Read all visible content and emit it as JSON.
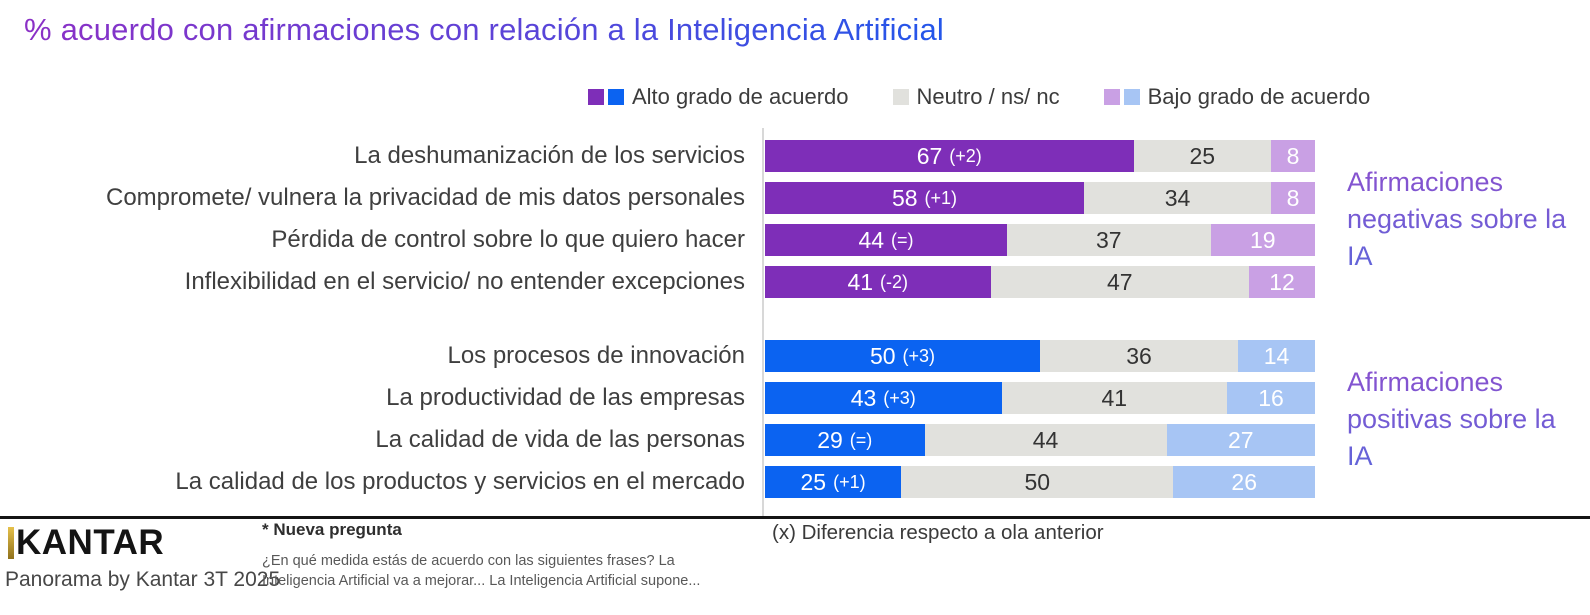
{
  "title": "% acuerdo con afirmaciones con relación a la Inteligencia Artificial",
  "legend": {
    "alto_label": "Alto grado de acuerdo",
    "neutro_label": "Neutro / ns/ nc",
    "bajo_label": "Bajo grado de acuerdo"
  },
  "colors": {
    "alto_negativo": "#7E2EB8",
    "alto_positivo": "#0B63F1",
    "neutro": "#E1E1DD",
    "bajo_negativo": "#C9A0E4",
    "bajo_positivo": "#A7C5F4",
    "title_gradient_start": "#8B30C6",
    "title_gradient_end": "#2356EA",
    "side_label_purple": "#7A5BD5",
    "kantar_gold": "#C9A227"
  },
  "chart_data": {
    "type": "bar",
    "orientation": "horizontal",
    "stacked": true,
    "unit": "%",
    "xlim": [
      0,
      100
    ],
    "series_names": [
      "Alto grado de acuerdo",
      "Neutro / ns/ nc",
      "Bajo grado de acuerdo"
    ],
    "legend_position": "top",
    "grid": false,
    "groups": [
      {
        "name": "Afirmaciones negativas sobre la IA",
        "rows": [
          {
            "label": "La deshumanización de los servicios",
            "alto": 67,
            "delta": "(+2)",
            "neutro": 25,
            "bajo": 8
          },
          {
            "label": "Compromete/ vulnera la privacidad de mis datos personales",
            "alto": 58,
            "delta": "(+1)",
            "neutro": 34,
            "bajo": 8
          },
          {
            "label": "Pérdida de control sobre lo que quiero hacer",
            "alto": 44,
            "delta": "(=)",
            "neutro": 37,
            "bajo": 19
          },
          {
            "label": "Inflexibilidad en el servicio/ no entender excepciones",
            "alto": 41,
            "delta": "(-2)",
            "neutro": 47,
            "bajo": 12
          }
        ]
      },
      {
        "name": "Afirmaciones positivas sobre la IA",
        "rows": [
          {
            "label": "Los procesos de innovación",
            "alto": 50,
            "delta": "(+3)",
            "neutro": 36,
            "bajo": 14
          },
          {
            "label": "La productividad de las empresas",
            "alto": 43,
            "delta": "(+3)",
            "neutro": 41,
            "bajo": 16
          },
          {
            "label": "La calidad de vida de las personas",
            "alto": 29,
            "delta": "(=)",
            "neutro": 44,
            "bajo": 27
          },
          {
            "label": "La calidad de los productos y servicios en el mercado",
            "alto": 25,
            "delta": "(+1)",
            "neutro": 50,
            "bajo": 26
          }
        ]
      }
    ]
  },
  "footer": {
    "brand": "KANTAR",
    "source": "Panorama by Kantar 3T 2025",
    "new_question_note": "* Nueva pregunta",
    "question_text": "¿En qué medida estás de acuerdo con las siguientes frases? La Inteligencia Artificial va a mejorar... La Inteligencia Artificial supone...",
    "delta_note": "(x) Diferencia respecto a ola anterior"
  }
}
